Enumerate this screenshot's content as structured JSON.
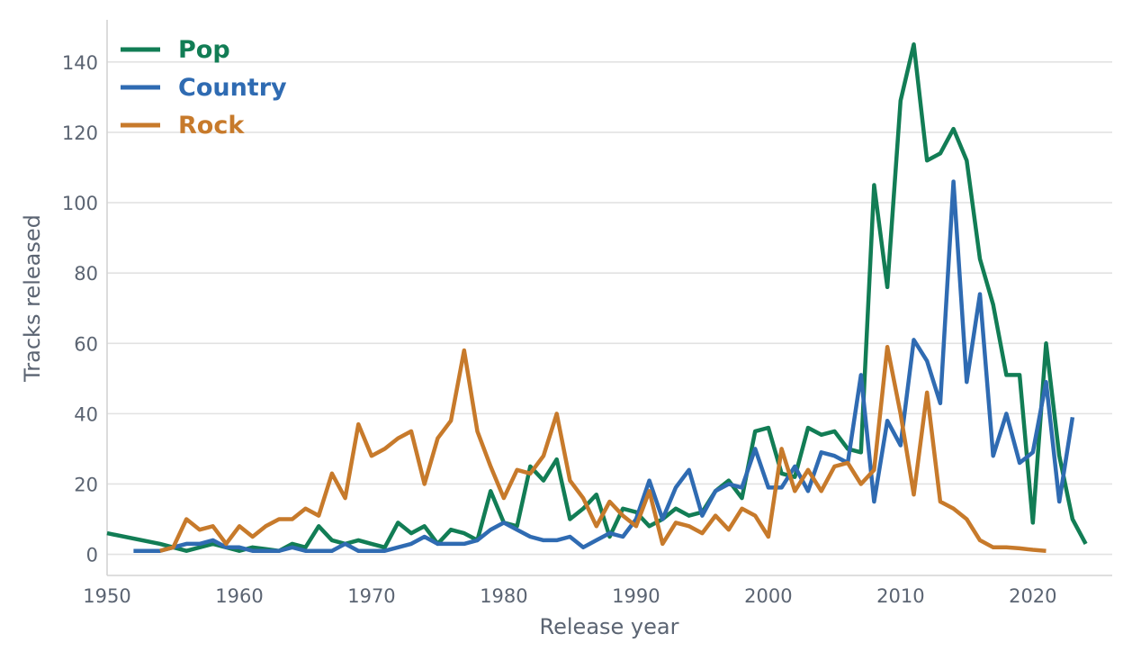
{
  "chart_data": {
    "type": "line",
    "title": "",
    "xlabel": "Release year",
    "ylabel": "Tracks released",
    "xlim": [
      1950,
      2026
    ],
    "ylim": [
      -6,
      152
    ],
    "x_ticks": [
      1950,
      1960,
      1970,
      1980,
      1990,
      2000,
      2010,
      2020
    ],
    "y_ticks": [
      0,
      20,
      40,
      60,
      80,
      100,
      120,
      140
    ],
    "grid": "horizontal",
    "legend": "top-left",
    "series": [
      {
        "name": "Pop",
        "color": "#127d55",
        "x": [
          1950,
          1954,
          1955,
          1956,
          1957,
          1958,
          1959,
          1960,
          1961,
          1962,
          1963,
          1964,
          1965,
          1966,
          1967,
          1968,
          1969,
          1970,
          1971,
          1972,
          1973,
          1974,
          1975,
          1976,
          1977,
          1978,
          1979,
          1980,
          1981,
          1982,
          1983,
          1984,
          1985,
          1986,
          1987,
          1988,
          1989,
          1990,
          1991,
          1992,
          1993,
          1994,
          1995,
          1996,
          1997,
          1998,
          1999,
          2000,
          2001,
          2002,
          2003,
          2004,
          2005,
          2006,
          2007,
          2008,
          2009,
          2010,
          2011,
          2012,
          2013,
          2014,
          2015,
          2016,
          2017,
          2018,
          2019,
          2020,
          2021,
          2022,
          2023,
          2024
        ],
        "y": [
          6,
          3,
          2,
          1,
          2,
          3,
          2,
          1,
          2,
          1.5,
          1,
          3,
          2,
          8,
          4,
          3,
          4,
          3,
          2,
          9,
          6,
          8,
          3,
          7,
          6,
          4,
          18,
          9,
          8,
          25,
          21,
          27,
          10,
          13,
          17,
          5,
          13,
          12,
          8,
          10,
          13,
          11,
          12,
          18,
          21,
          16,
          35,
          36,
          23,
          22,
          36,
          34,
          35,
          30,
          29,
          105,
          76,
          129,
          145,
          112,
          114,
          121,
          112,
          84,
          71,
          51,
          51,
          9,
          60,
          28,
          10,
          3
        ]
      },
      {
        "name": "Country",
        "color": "#2f6bb2",
        "x": [
          1952,
          1953,
          1954,
          1955,
          1956,
          1957,
          1958,
          1959,
          1960,
          1961,
          1962,
          1963,
          1964,
          1965,
          1966,
          1967,
          1968,
          1969,
          1970,
          1971,
          1972,
          1973,
          1974,
          1975,
          1976,
          1977,
          1978,
          1979,
          1980,
          1981,
          1982,
          1983,
          1984,
          1985,
          1986,
          1987,
          1988,
          1989,
          1990,
          1991,
          1992,
          1993,
          1994,
          1995,
          1996,
          1997,
          1998,
          1999,
          2000,
          2001,
          2002,
          2003,
          2004,
          2005,
          2006,
          2007,
          2008,
          2009,
          2010,
          2011,
          2012,
          2013,
          2014,
          2015,
          2016,
          2017,
          2018,
          2019,
          2020,
          2021,
          2022,
          2023
        ],
        "y": [
          1,
          1,
          1,
          2,
          3,
          3,
          4,
          2,
          2,
          1,
          1,
          1,
          2,
          1,
          1,
          1,
          3,
          1,
          1,
          1,
          2,
          3,
          5,
          3,
          3,
          3,
          4,
          7,
          9,
          7,
          5,
          4,
          4,
          5,
          2,
          4,
          6,
          5,
          10,
          21,
          10,
          19,
          24,
          11,
          18,
          20,
          19,
          30,
          19,
          19,
          25,
          18,
          29,
          28,
          26,
          51,
          15,
          38,
          31,
          61,
          55,
          43,
          106,
          49,
          74,
          28,
          40,
          26,
          29,
          49,
          15,
          39
        ]
      },
      {
        "name": "Rock",
        "color": "#c77a2b",
        "x": [
          1954,
          1955,
          1956,
          1957,
          1958,
          1959,
          1960,
          1961,
          1962,
          1963,
          1964,
          1965,
          1966,
          1967,
          1968,
          1969,
          1970,
          1971,
          1972,
          1973,
          1974,
          1975,
          1976,
          1977,
          1978,
          1979,
          1980,
          1981,
          1982,
          1983,
          1984,
          1985,
          1986,
          1987,
          1988,
          1989,
          1990,
          1991,
          1992,
          1993,
          1994,
          1995,
          1996,
          1997,
          1998,
          1999,
          2000,
          2001,
          2002,
          2003,
          2004,
          2005,
          2006,
          2007,
          2008,
          2009,
          2010,
          2011,
          2012,
          2013,
          2014,
          2015,
          2016,
          2017,
          2018,
          2019,
          2020,
          2021
        ],
        "y": [
          1,
          2,
          10,
          7,
          8,
          3,
          8,
          5,
          8,
          10,
          10,
          13,
          11,
          23,
          16,
          37,
          28,
          30,
          33,
          35,
          20,
          33,
          38,
          58,
          35,
          25,
          16,
          24,
          23,
          28,
          40,
          21,
          16,
          8,
          15,
          11,
          8,
          18,
          3,
          9,
          8,
          6,
          11,
          7,
          13,
          11,
          5,
          30,
          18,
          24,
          18,
          25,
          26,
          20,
          24,
          59,
          40,
          17,
          46,
          15,
          13,
          10,
          4,
          2,
          2,
          1.7,
          1.3,
          1
        ]
      }
    ]
  }
}
